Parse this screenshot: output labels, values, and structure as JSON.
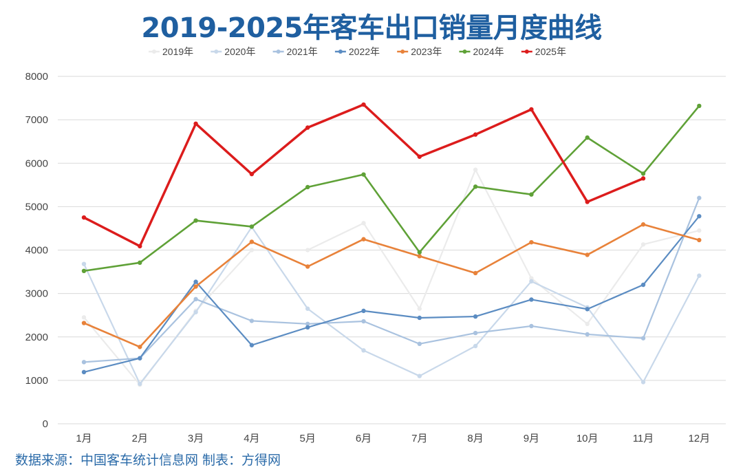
{
  "chart_data": {
    "type": "line",
    "title": "2019-2025年客车出口销量月度曲线",
    "categories": [
      "1月",
      "2月",
      "3月",
      "4月",
      "5月",
      "6月",
      "7月",
      "8月",
      "9月",
      "10月",
      "11月",
      "12月"
    ],
    "ylim": [
      0,
      8000
    ],
    "yticks": [
      0,
      1000,
      2000,
      3000,
      4000,
      5000,
      6000,
      7000,
      8000
    ],
    "grid": true,
    "legend_position": "top-center",
    "series": [
      {
        "name": "2019年",
        "color": "#ebebeb",
        "values": [
          2450,
          900,
          2600,
          4000,
          4000,
          4620,
          2650,
          5850,
          3350,
          2300,
          4130,
          4450
        ]
      },
      {
        "name": "2020年",
        "color": "#c8d8ea",
        "values": [
          3680,
          920,
          2570,
          4530,
          2650,
          1690,
          1100,
          1790,
          3280,
          2680,
          960,
          3410
        ]
      },
      {
        "name": "2021年",
        "color": "#a9c2df",
        "values": [
          1420,
          1510,
          2870,
          2370,
          2300,
          2360,
          1840,
          2090,
          2250,
          2060,
          1970,
          5200
        ]
      },
      {
        "name": "2022年",
        "color": "#5b8cc2",
        "values": [
          1190,
          1510,
          3270,
          1810,
          2220,
          2600,
          2440,
          2470,
          2860,
          2640,
          3200,
          4780
        ]
      },
      {
        "name": "2023年",
        "color": "#e8823a",
        "values": [
          2320,
          1770,
          3160,
          4190,
          3620,
          4250,
          3860,
          3470,
          4180,
          3890,
          4590,
          4230
        ]
      },
      {
        "name": "2024年",
        "color": "#5fa137",
        "values": [
          3520,
          3710,
          4680,
          4540,
          5450,
          5740,
          3950,
          5460,
          5280,
          6590,
          5760,
          7320
        ]
      },
      {
        "name": "2025年",
        "color": "#dc1c1c",
        "values": [
          4750,
          4090,
          6910,
          5750,
          6820,
          7350,
          6150,
          6660,
          7240,
          5110,
          5650,
          null
        ]
      }
    ]
  },
  "source_note": "数据来源：中国客车统计信息网 制表：方得网"
}
